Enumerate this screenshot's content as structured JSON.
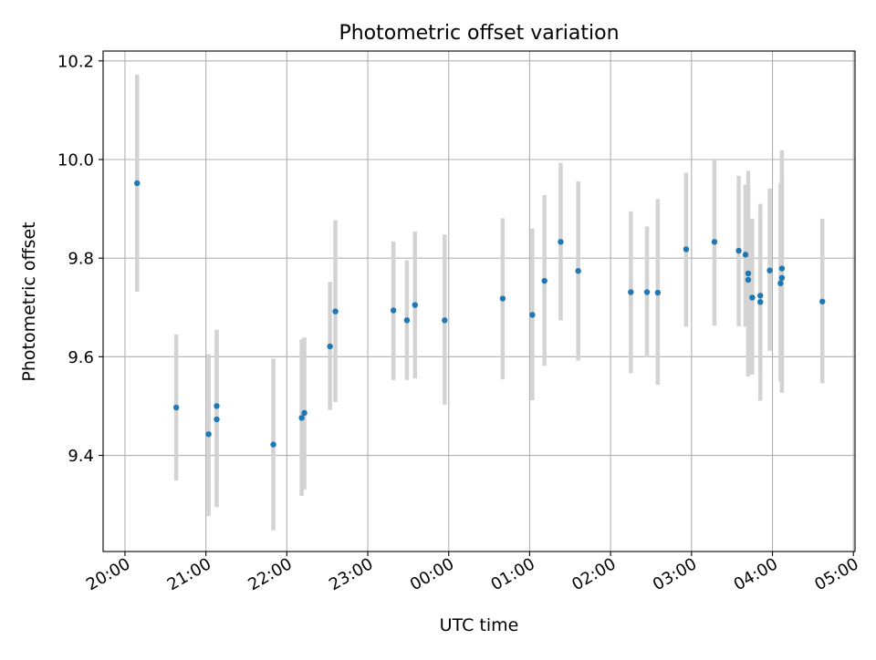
{
  "chart_data": {
    "type": "scatter",
    "title": "Photometric offset variation",
    "xlabel": "UTC time",
    "ylabel": "Photometric offset",
    "x_tick_labels": [
      "20:00",
      "21:00",
      "22:00",
      "23:00",
      "00:00",
      "01:00",
      "02:00",
      "03:00",
      "04:00",
      "05:00"
    ],
    "x_tick_hours": [
      0,
      1,
      2,
      3,
      4,
      5,
      6,
      7,
      8,
      9
    ],
    "y_ticks": [
      "9.4",
      "9.6",
      "9.8",
      "10.0",
      "10.2"
    ],
    "xlim_hours_after_20": [
      -0.27,
      9.02
    ],
    "ylim": [
      9.205,
      10.22
    ],
    "grid": true,
    "colors": {
      "points": "#1f77b4",
      "errorbars": "#d3d3d3",
      "grid": "#b0b0b0"
    },
    "points": [
      {
        "x": "20:09",
        "y": 9.952,
        "ylo": 9.732,
        "yhi": 10.172
      },
      {
        "x": "20:38",
        "y": 9.497,
        "ylo": 9.349,
        "yhi": 9.645
      },
      {
        "x": "21:02",
        "y": 9.443,
        "ylo": 9.277,
        "yhi": 9.605
      },
      {
        "x": "21:08",
        "y": 9.5,
        "ylo": 9.345,
        "yhi": 9.655
      },
      {
        "x": "21:08",
        "y": 9.473,
        "ylo": 9.295,
        "yhi": 9.652
      },
      {
        "x": "21:50",
        "y": 9.422,
        "ylo": 9.248,
        "yhi": 9.596
      },
      {
        "x": "22:11",
        "y": 9.476,
        "ylo": 9.318,
        "yhi": 9.635
      },
      {
        "x": "22:13",
        "y": 9.486,
        "ylo": 9.331,
        "yhi": 9.639
      },
      {
        "x": "22:32",
        "y": 9.621,
        "ylo": 9.492,
        "yhi": 9.752
      },
      {
        "x": "22:36",
        "y": 9.692,
        "ylo": 9.508,
        "yhi": 9.877
      },
      {
        "x": "23:19",
        "y": 9.694,
        "ylo": 9.553,
        "yhi": 9.834
      },
      {
        "x": "23:29",
        "y": 9.674,
        "ylo": 9.553,
        "yhi": 9.796
      },
      {
        "x": "23:35",
        "y": 9.705,
        "ylo": 9.556,
        "yhi": 9.854
      },
      {
        "x": "23:57",
        "y": 9.674,
        "ylo": 9.503,
        "yhi": 9.848
      },
      {
        "x": "00:40",
        "y": 9.718,
        "ylo": 9.554,
        "yhi": 9.881
      },
      {
        "x": "01:02",
        "y": 9.685,
        "ylo": 9.512,
        "yhi": 9.86
      },
      {
        "x": "01:11",
        "y": 9.754,
        "ylo": 9.582,
        "yhi": 9.928
      },
      {
        "x": "01:23",
        "y": 9.833,
        "ylo": 9.674,
        "yhi": 9.993
      },
      {
        "x": "01:36",
        "y": 9.774,
        "ylo": 9.592,
        "yhi": 9.956
      },
      {
        "x": "02:15",
        "y": 9.731,
        "ylo": 9.567,
        "yhi": 9.895
      },
      {
        "x": "02:27",
        "y": 9.731,
        "ylo": 9.599,
        "yhi": 9.864
      },
      {
        "x": "02:35",
        "y": 9.73,
        "ylo": 9.543,
        "yhi": 9.92
      },
      {
        "x": "02:56",
        "y": 9.818,
        "ylo": 9.661,
        "yhi": 9.973
      },
      {
        "x": "03:17",
        "y": 9.833,
        "ylo": 9.663,
        "yhi": 10.002
      },
      {
        "x": "03:35",
        "y": 9.815,
        "ylo": 9.662,
        "yhi": 9.967
      },
      {
        "x": "03:40",
        "y": 9.807,
        "ylo": 9.661,
        "yhi": 9.949
      },
      {
        "x": "03:42",
        "y": 9.769,
        "ylo": 9.56,
        "yhi": 9.977
      },
      {
        "x": "03:42",
        "y": 9.756,
        "ylo": 9.564,
        "yhi": 9.941
      },
      {
        "x": "03:45",
        "y": 9.72,
        "ylo": 9.564,
        "yhi": 9.88
      },
      {
        "x": "03:51",
        "y": 9.711,
        "ylo": 9.511,
        "yhi": 9.91
      },
      {
        "x": "03:51",
        "y": 9.724,
        "ylo": 9.567,
        "yhi": 9.884
      },
      {
        "x": "03:58",
        "y": 9.775,
        "ylo": 9.612,
        "yhi": 9.941
      },
      {
        "x": "04:06",
        "y": 9.749,
        "ylo": 9.549,
        "yhi": 9.952
      },
      {
        "x": "04:07",
        "y": 9.76,
        "ylo": 9.527,
        "yhi": 10.019
      },
      {
        "x": "04:07",
        "y": 9.779,
        "ylo": 9.548,
        "yhi": 9.964
      },
      {
        "x": "04:37",
        "y": 9.712,
        "ylo": 9.546,
        "yhi": 9.88
      }
    ]
  }
}
